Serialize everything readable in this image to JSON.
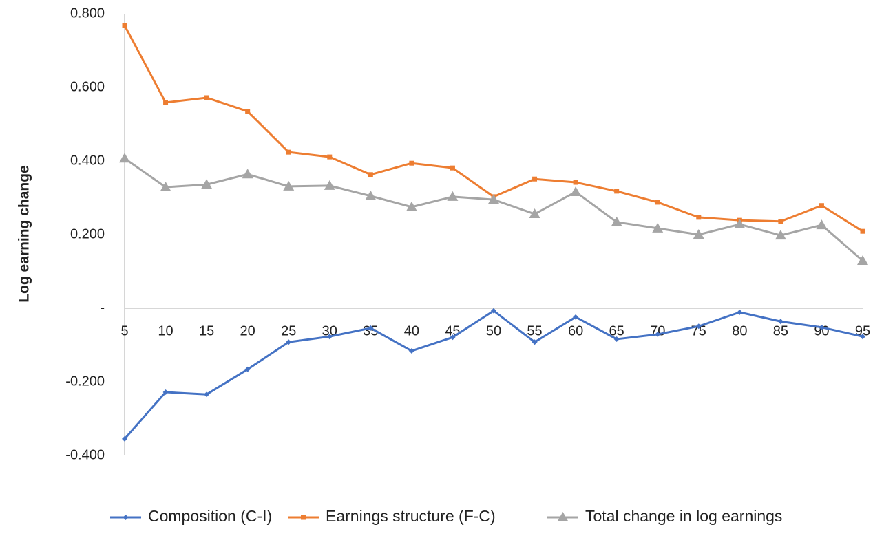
{
  "chart_data": {
    "type": "line",
    "y_label": "Log earning change",
    "categories": [
      5,
      10,
      15,
      20,
      25,
      30,
      35,
      40,
      45,
      50,
      55,
      60,
      65,
      70,
      75,
      80,
      85,
      90,
      95
    ],
    "series": [
      {
        "name": "Composition (C-I)",
        "color": "#4472c4",
        "marker": "diamond",
        "values": [
          -0.355,
          -0.228,
          -0.234,
          -0.166,
          -0.092,
          -0.077,
          -0.054,
          -0.116,
          -0.079,
          -0.007,
          -0.092,
          -0.024,
          -0.084,
          -0.071,
          -0.049,
          -0.011,
          -0.036,
          -0.052,
          -0.077
        ]
      },
      {
        "name": "Earnings structure (F-C)",
        "color": "#ed7d31",
        "marker": "square",
        "values": [
          0.768,
          0.559,
          0.572,
          0.535,
          0.424,
          0.411,
          0.363,
          0.394,
          0.381,
          0.303,
          0.351,
          0.342,
          0.318,
          0.288,
          0.247,
          0.239,
          0.236,
          0.279,
          0.209
        ]
      },
      {
        "name": "Total change in log earnings",
        "color": "#a5a5a5",
        "marker": "triangle",
        "values": [
          0.407,
          0.329,
          0.336,
          0.364,
          0.331,
          0.333,
          0.305,
          0.275,
          0.303,
          0.295,
          0.256,
          0.316,
          0.234,
          0.217,
          0.2,
          0.228,
          0.198,
          0.226,
          0.129
        ]
      }
    ],
    "ylim": [
      -0.4,
      0.8
    ],
    "yticks": [
      {
        "value": 0.8,
        "label": "0.800"
      },
      {
        "value": 0.6,
        "label": "0.600"
      },
      {
        "value": 0.4,
        "label": "0.400"
      },
      {
        "value": 0.2,
        "label": "0.200"
      },
      {
        "value": 0,
        "label": "-"
      },
      {
        "value": -0.2,
        "label": "-0.200"
      },
      {
        "value": -0.4,
        "label": "-0.400"
      }
    ],
    "grid": false,
    "legend": "bottom"
  }
}
